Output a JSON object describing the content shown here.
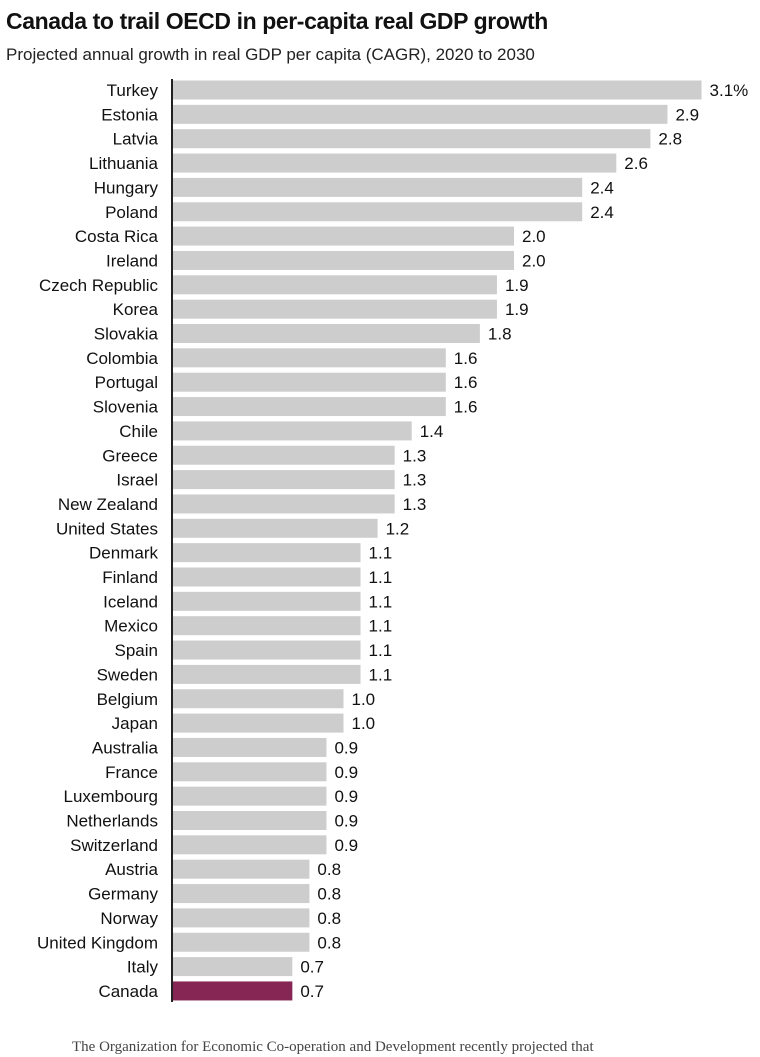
{
  "chart_data": {
    "type": "bar",
    "orientation": "horizontal",
    "title": "Canada to trail OECD in per-capita real GDP growth",
    "subtitle": "Projected annual growth in real GDP per capita (CAGR), 2020 to 2030",
    "categories": [
      "Turkey",
      "Estonia",
      "Latvia",
      "Lithuania",
      "Hungary",
      "Poland",
      "Costa Rica",
      "Ireland",
      "Czech Republic",
      "Korea",
      "Slovakia",
      "Colombia",
      "Portugal",
      "Slovenia",
      "Chile",
      "Greece",
      "Israel",
      "New Zealand",
      "United States",
      "Denmark",
      "Finland",
      "Iceland",
      "Mexico",
      "Spain",
      "Sweden",
      "Belgium",
      "Japan",
      "Australia",
      "France",
      "Luxembourg",
      "Netherlands",
      "Switzerland",
      "Austria",
      "Germany",
      "Norway",
      "United Kingdom",
      "Italy",
      "Canada"
    ],
    "values": [
      3.1,
      2.9,
      2.8,
      2.6,
      2.4,
      2.4,
      2.0,
      2.0,
      1.9,
      1.9,
      1.8,
      1.6,
      1.6,
      1.6,
      1.4,
      1.3,
      1.3,
      1.3,
      1.2,
      1.1,
      1.1,
      1.1,
      1.1,
      1.1,
      1.1,
      1.0,
      1.0,
      0.9,
      0.9,
      0.9,
      0.9,
      0.9,
      0.8,
      0.8,
      0.8,
      0.8,
      0.7,
      0.7
    ],
    "value_labels": [
      "3.1%",
      "2.9",
      "2.8",
      "2.6",
      "2.4",
      "2.4",
      "2.0",
      "2.0",
      "1.9",
      "1.9",
      "1.8",
      "1.6",
      "1.6",
      "1.6",
      "1.4",
      "1.3",
      "1.3",
      "1.3",
      "1.2",
      "1.1",
      "1.1",
      "1.1",
      "1.1",
      "1.1",
      "1.1",
      "1.0",
      "1.0",
      "0.9",
      "0.9",
      "0.9",
      "0.9",
      "0.9",
      "0.8",
      "0.8",
      "0.8",
      "0.8",
      "0.7",
      "0.7"
    ],
    "highlight": "Canada",
    "xlim": [
      0,
      3.1
    ],
    "grid": false,
    "colors": {
      "bar": "#cdcdcd",
      "highlight": "#862654",
      "axis": "#222222",
      "text": "#111111"
    }
  },
  "caption": "The Organization for Economic Co-operation and Development recently projected that"
}
